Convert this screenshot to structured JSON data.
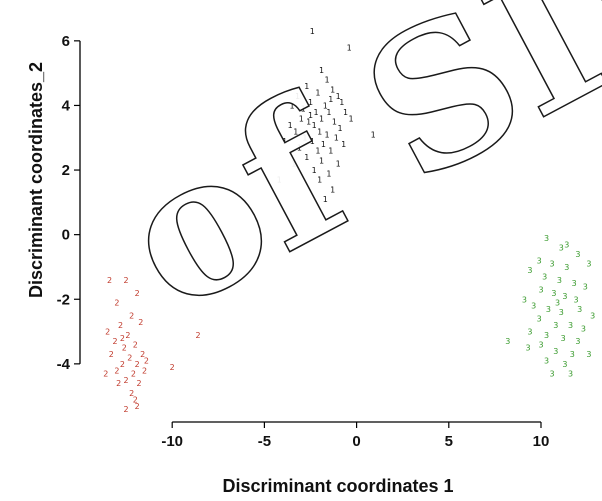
{
  "chart_data": {
    "type": "scatter",
    "title": "",
    "xlabel": "Discriminant coordinates 1",
    "ylabel": "Discriminant coordinates_2",
    "xlim": [
      -15,
      13.2
    ],
    "ylim": [
      -5.8,
      6.8
    ],
    "xticks": [
      -10,
      -5,
      0,
      5,
      10
    ],
    "yticks": [
      -4,
      -2,
      0,
      2,
      4,
      6
    ],
    "xtick_labels": [
      "-10",
      "-5",
      "0",
      "5",
      "10"
    ],
    "ytick_labels": [
      "-4",
      "-2",
      "0",
      "2",
      "4",
      "6"
    ],
    "grid": false,
    "marker": "group number printed at each point",
    "series": [
      {
        "marker_label": "1",
        "color": "#111111",
        "points": [
          [
            -2.4,
            6.3
          ],
          [
            -0.4,
            5.8
          ],
          [
            -1.9,
            5.1
          ],
          [
            -1.6,
            4.8
          ],
          [
            -2.7,
            4.6
          ],
          [
            -1.3,
            4.5
          ],
          [
            -3.2,
            4.3
          ],
          [
            -2.1,
            4.4
          ],
          [
            -1.0,
            4.3
          ],
          [
            -0.8,
            4.1
          ],
          [
            -2.5,
            4.1
          ],
          [
            -3.5,
            4.0
          ],
          [
            -1.7,
            4.0
          ],
          [
            -2.9,
            3.9
          ],
          [
            -1.5,
            3.8
          ],
          [
            -2.2,
            3.8
          ],
          [
            -0.6,
            3.8
          ],
          [
            -3.0,
            3.6
          ],
          [
            -1.9,
            3.6
          ],
          [
            -2.6,
            3.5
          ],
          [
            -1.2,
            3.5
          ],
          [
            -3.6,
            3.4
          ],
          [
            -2.3,
            3.4
          ],
          [
            -0.9,
            3.3
          ],
          [
            -3.3,
            3.2
          ],
          [
            -2.0,
            3.2
          ],
          [
            -1.6,
            3.1
          ],
          [
            -2.8,
            3.0
          ],
          [
            -1.1,
            3.0
          ],
          [
            -3.9,
            2.9
          ],
          [
            -2.4,
            2.9
          ],
          [
            -1.8,
            2.8
          ],
          [
            -0.7,
            2.8
          ],
          [
            -3.1,
            2.7
          ],
          [
            -2.1,
            2.6
          ],
          [
            -1.4,
            2.6
          ],
          [
            -2.7,
            2.4
          ],
          [
            -1.9,
            2.3
          ],
          [
            -3.4,
            2.2
          ],
          [
            -1.0,
            2.2
          ],
          [
            -2.3,
            2.0
          ],
          [
            -1.5,
            1.9
          ],
          [
            -2.0,
            1.7
          ],
          [
            -1.3,
            1.4
          ],
          [
            -1.7,
            1.1
          ],
          [
            -4.2,
            1.7
          ],
          [
            0.9,
            3.1
          ],
          [
            -0.3,
            3.6
          ],
          [
            -2.5,
            3.7
          ],
          [
            -1.4,
            4.2
          ]
        ]
      },
      {
        "marker_label": "2",
        "color": "#c0392b",
        "points": [
          [
            -13.4,
            -1.4
          ],
          [
            -12.5,
            -1.4
          ],
          [
            -11.9,
            -1.8
          ],
          [
            -13.0,
            -2.1
          ],
          [
            -12.2,
            -2.5
          ],
          [
            -12.8,
            -2.8
          ],
          [
            -11.7,
            -2.7
          ],
          [
            -13.5,
            -3.0
          ],
          [
            -12.4,
            -3.1
          ],
          [
            -13.1,
            -3.3
          ],
          [
            -12.0,
            -3.4
          ],
          [
            -12.6,
            -3.5
          ],
          [
            -11.6,
            -3.7
          ],
          [
            -13.3,
            -3.7
          ],
          [
            -12.3,
            -3.8
          ],
          [
            -11.9,
            -4.0
          ],
          [
            -12.7,
            -4.0
          ],
          [
            -11.4,
            -3.9
          ],
          [
            -13.0,
            -4.2
          ],
          [
            -12.1,
            -4.3
          ],
          [
            -12.5,
            -4.5
          ],
          [
            -11.8,
            -4.6
          ],
          [
            -12.9,
            -4.6
          ],
          [
            -12.2,
            -4.9
          ],
          [
            -11.9,
            -5.3
          ],
          [
            -12.5,
            -5.4
          ],
          [
            -12.0,
            -5.1
          ],
          [
            -13.6,
            -4.3
          ],
          [
            -10.0,
            -4.1
          ],
          [
            -8.6,
            -3.1
          ],
          [
            -12.7,
            -3.2
          ],
          [
            -11.5,
            -4.2
          ]
        ]
      },
      {
        "marker_label": "3",
        "color": "#3a9b2e",
        "points": [
          [
            11.4,
            -0.3
          ],
          [
            10.3,
            -0.1
          ],
          [
            11.1,
            -0.4
          ],
          [
            12.0,
            -0.6
          ],
          [
            9.9,
            -0.8
          ],
          [
            10.6,
            -0.9
          ],
          [
            11.4,
            -1.0
          ],
          [
            12.6,
            -0.9
          ],
          [
            9.4,
            -1.1
          ],
          [
            10.2,
            -1.3
          ],
          [
            11.0,
            -1.4
          ],
          [
            11.8,
            -1.5
          ],
          [
            12.4,
            -1.6
          ],
          [
            10.0,
            -1.7
          ],
          [
            10.7,
            -1.8
          ],
          [
            11.3,
            -1.9
          ],
          [
            9.1,
            -2.0
          ],
          [
            9.6,
            -2.2
          ],
          [
            10.4,
            -2.3
          ],
          [
            11.1,
            -2.4
          ],
          [
            12.1,
            -2.3
          ],
          [
            12.8,
            -2.5
          ],
          [
            9.9,
            -2.6
          ],
          [
            10.8,
            -2.8
          ],
          [
            11.6,
            -2.8
          ],
          [
            12.3,
            -2.9
          ],
          [
            9.4,
            -3.0
          ],
          [
            10.3,
            -3.1
          ],
          [
            11.2,
            -3.2
          ],
          [
            12.0,
            -3.3
          ],
          [
            10.0,
            -3.4
          ],
          [
            10.8,
            -3.6
          ],
          [
            11.7,
            -3.7
          ],
          [
            12.6,
            -3.7
          ],
          [
            10.3,
            -3.9
          ],
          [
            11.3,
            -4.0
          ],
          [
            10.6,
            -4.3
          ],
          [
            11.6,
            -4.3
          ],
          [
            8.2,
            -3.3
          ],
          [
            9.3,
            -3.5
          ],
          [
            10.9,
            -2.1
          ],
          [
            11.9,
            -2.0
          ]
        ]
      }
    ]
  }
}
